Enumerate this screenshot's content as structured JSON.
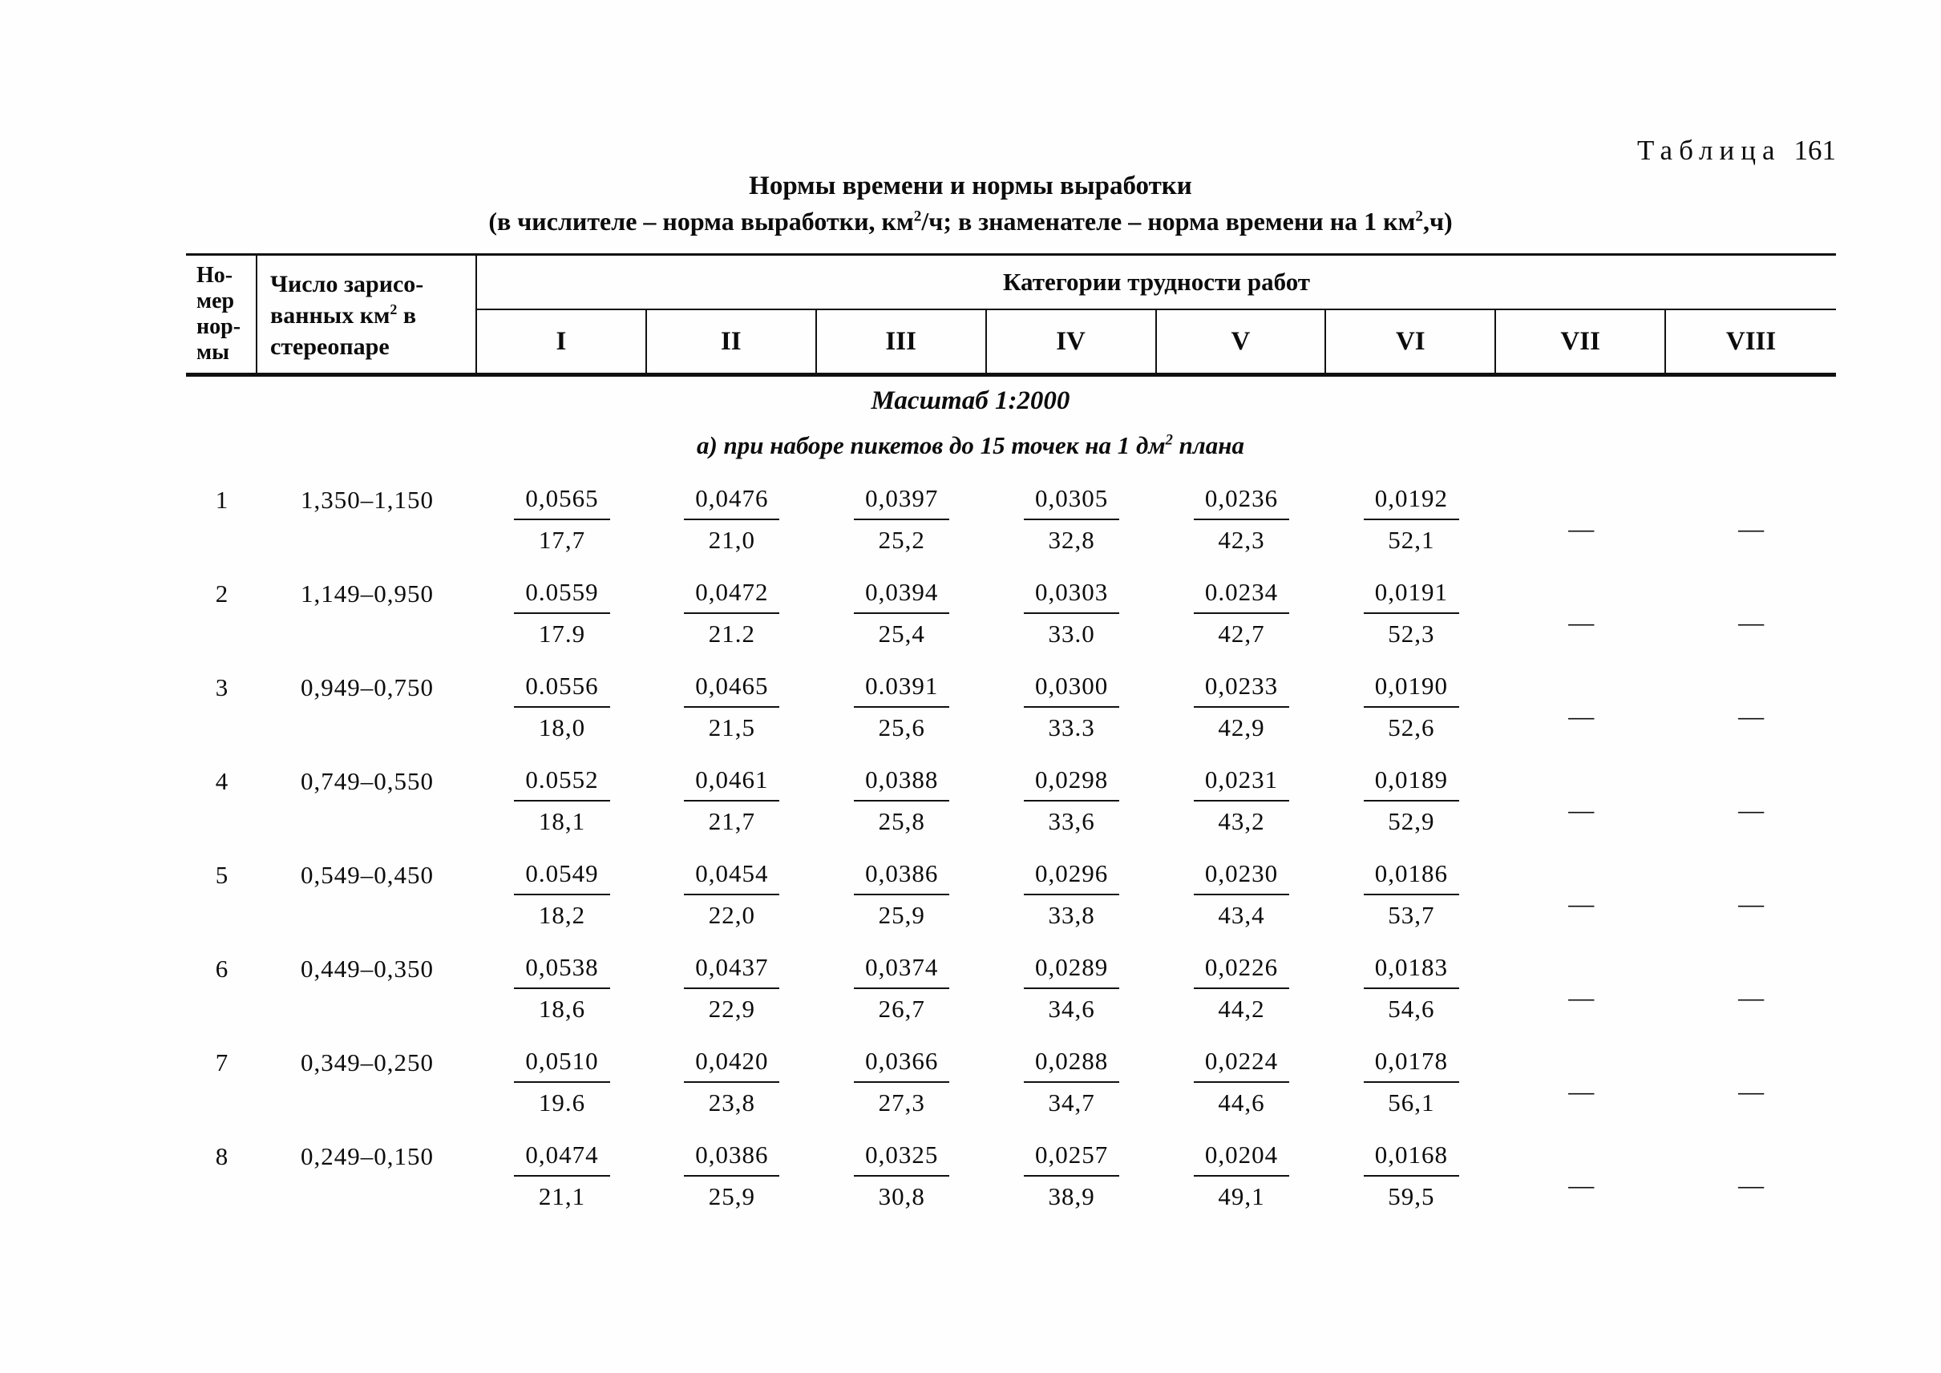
{
  "page": {
    "table_label_word": "Таблица",
    "table_label_number": "161",
    "title": "Нормы времени и нормы выработки",
    "subtitle": {
      "part1": "(в числителе – норма выработки, км",
      "sup1": "2",
      "part2": "/ч;  в знаменателе – норма времени на 1 км",
      "sup2": "2",
      "part3": ",ч)"
    }
  },
  "header": {
    "col1_lines": "Но-\nмер\nнор-\nмы",
    "col2": {
      "line1": "Число зарисо-",
      "line2a": "ванных км",
      "line2_sup": "2",
      "line2b": " в",
      "line3": "стереопаре"
    },
    "categories_label": "Категории трудности работ",
    "columns": [
      "I",
      "II",
      "III",
      "IV",
      "V",
      "VI",
      "VII",
      "VIII"
    ]
  },
  "section": {
    "scale_heading": "Масштаб 1:2000",
    "subsection": {
      "part1": "а) при наборе пикетов до 15 точек на 1 дм",
      "sup": "2",
      "part2": " плана"
    }
  },
  "table_rows": [
    {
      "num": "1",
      "range": "1,350–1,150",
      "values": [
        {
          "n": "0,0565",
          "d": "17,7"
        },
        {
          "n": "0,0476",
          "d": "21,0"
        },
        {
          "n": "0,0397",
          "d": "25,2"
        },
        {
          "n": "0,0305",
          "d": "32,8"
        },
        {
          "n": "0,0236",
          "d": "42,3"
        },
        {
          "n": "0,0192",
          "d": "52,1"
        },
        "—",
        "—"
      ]
    },
    {
      "num": "2",
      "range": "1,149–0,950",
      "values": [
        {
          "n": "0.0559",
          "d": "17.9"
        },
        {
          "n": "0,0472",
          "d": "21.2"
        },
        {
          "n": "0,0394",
          "d": "25,4"
        },
        {
          "n": "0,0303",
          "d": "33.0"
        },
        {
          "n": "0.0234",
          "d": "42,7"
        },
        {
          "n": "0,0191",
          "d": "52,3"
        },
        "—",
        "—"
      ]
    },
    {
      "num": "3",
      "range": "0,949–0,750",
      "values": [
        {
          "n": "0.0556",
          "d": "18,0"
        },
        {
          "n": "0,0465",
          "d": "21,5"
        },
        {
          "n": "0.0391",
          "d": "25,6"
        },
        {
          "n": "0,0300",
          "d": "33.3"
        },
        {
          "n": "0,0233",
          "d": "42,9"
        },
        {
          "n": "0,0190",
          "d": "52,6"
        },
        "—",
        "—"
      ]
    },
    {
      "num": "4",
      "range": "0,749–0,550",
      "values": [
        {
          "n": "0.0552",
          "d": "18,1"
        },
        {
          "n": "0,0461",
          "d": "21,7"
        },
        {
          "n": "0,0388",
          "d": "25,8"
        },
        {
          "n": "0,0298",
          "d": "33,6"
        },
        {
          "n": "0,0231",
          "d": "43,2"
        },
        {
          "n": "0,0189",
          "d": "52,9"
        },
        "—",
        "—"
      ]
    },
    {
      "num": "5",
      "range": "0,549–0,450",
      "values": [
        {
          "n": "0.0549",
          "d": "18,2"
        },
        {
          "n": "0,0454",
          "d": "22,0"
        },
        {
          "n": "0,0386",
          "d": "25,9"
        },
        {
          "n": "0,0296",
          "d": "33,8"
        },
        {
          "n": "0,0230",
          "d": "43,4"
        },
        {
          "n": "0,0186",
          "d": "53,7"
        },
        "—",
        "—"
      ]
    },
    {
      "num": "6",
      "range": "0,449–0,350",
      "values": [
        {
          "n": "0,0538",
          "d": "18,6"
        },
        {
          "n": "0,0437",
          "d": "22,9"
        },
        {
          "n": "0,0374",
          "d": "26,7"
        },
        {
          "n": "0,0289",
          "d": "34,6"
        },
        {
          "n": "0,0226",
          "d": "44,2"
        },
        {
          "n": "0,0183",
          "d": "54,6"
        },
        "—",
        "—"
      ]
    },
    {
      "num": "7",
      "range": "0,349–0,250",
      "values": [
        {
          "n": "0,0510",
          "d": "19.6"
        },
        {
          "n": "0,0420",
          "d": "23,8"
        },
        {
          "n": "0,0366",
          "d": "27,3"
        },
        {
          "n": "0,0288",
          "d": "34,7"
        },
        {
          "n": "0,0224",
          "d": "44,6"
        },
        {
          "n": "0,0178",
          "d": "56,1"
        },
        "—",
        "—"
      ]
    },
    {
      "num": "8",
      "range": "0,249–0,150",
      "values": [
        {
          "n": "0,0474",
          "d": "21,1"
        },
        {
          "n": "0,0386",
          "d": "25,9"
        },
        {
          "n": "0,0325",
          "d": "30,8"
        },
        {
          "n": "0,0257",
          "d": "38,9"
        },
        {
          "n": "0,0204",
          "d": "49,1"
        },
        {
          "n": "0,0168",
          "d": "59,5"
        },
        "—",
        "—"
      ]
    }
  ]
}
